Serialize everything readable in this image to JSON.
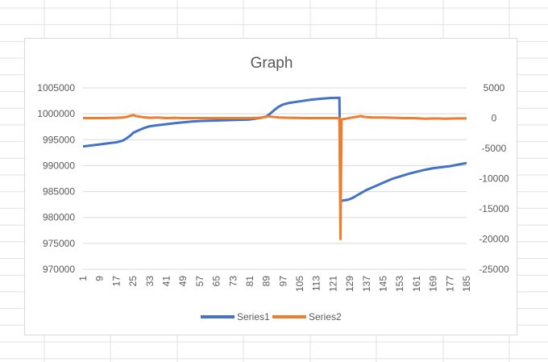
{
  "colors": {
    "sheet_grid": "#e1e1e1",
    "chart_border": "#d9d9d9",
    "gridline": "#d9d9d9",
    "text": "#595959",
    "series1": "#4472c4",
    "series2": "#ed7d31"
  },
  "chart_data": {
    "type": "line",
    "title": "Graph",
    "xlabel": "",
    "ylabel": "",
    "grid": true,
    "legend_position": "bottom",
    "x": {
      "start": 1,
      "end": 185,
      "tick_labels": [
        "1",
        "9",
        "17",
        "25",
        "33",
        "41",
        "49",
        "57",
        "65",
        "73",
        "81",
        "89",
        "97",
        "105",
        "113",
        "121",
        "129",
        "137",
        "145",
        "153",
        "161",
        "169",
        "177",
        "185"
      ]
    },
    "y_primary": {
      "min": 970000,
      "max": 1005000,
      "step": 5000,
      "tick_labels": [
        "1005000",
        "1000000",
        "995000",
        "990000",
        "985000",
        "980000",
        "975000",
        "970000"
      ]
    },
    "y_secondary": {
      "min": -25000,
      "max": 5000,
      "step": 5000,
      "tick_labels": [
        "5000",
        "0",
        "-5000",
        "-10000",
        "-15000",
        "-20000",
        "-25000"
      ]
    },
    "series": [
      {
        "name": "Series1",
        "axis": "primary",
        "points": [
          [
            1,
            993700
          ],
          [
            5,
            993900
          ],
          [
            9,
            994100
          ],
          [
            13,
            994300
          ],
          [
            17,
            994500
          ],
          [
            20,
            994800
          ],
          [
            22,
            995300
          ],
          [
            24,
            995900
          ],
          [
            25,
            996300
          ],
          [
            27,
            996700
          ],
          [
            30,
            997200
          ],
          [
            33,
            997600
          ],
          [
            37,
            997800
          ],
          [
            41,
            998000
          ],
          [
            45,
            998200
          ],
          [
            49,
            998350
          ],
          [
            53,
            998500
          ],
          [
            57,
            998600
          ],
          [
            65,
            998700
          ],
          [
            73,
            998800
          ],
          [
            81,
            998900
          ],
          [
            86,
            999200
          ],
          [
            89,
            999500
          ],
          [
            91,
            1000100
          ],
          [
            93,
            1000800
          ],
          [
            95,
            1001400
          ],
          [
            97,
            1001800
          ],
          [
            100,
            1002100
          ],
          [
            105,
            1002400
          ],
          [
            110,
            1002700
          ],
          [
            115,
            1002900
          ],
          [
            120,
            1003050
          ],
          [
            124,
            1003100
          ],
          [
            124.5,
            983100
          ],
          [
            126,
            983300
          ],
          [
            128,
            983400
          ],
          [
            130,
            983700
          ],
          [
            133,
            984400
          ],
          [
            137,
            985300
          ],
          [
            141,
            986000
          ],
          [
            145,
            986700
          ],
          [
            149,
            987400
          ],
          [
            153,
            987900
          ],
          [
            157,
            988400
          ],
          [
            161,
            988800
          ],
          [
            165,
            989200
          ],
          [
            169,
            989500
          ],
          [
            173,
            989700
          ],
          [
            177,
            989900
          ],
          [
            181,
            990200
          ],
          [
            185,
            990500
          ]
        ]
      },
      {
        "name": "Series2",
        "axis": "secondary",
        "points": [
          [
            1,
            0
          ],
          [
            10,
            0
          ],
          [
            17,
            50
          ],
          [
            20,
            100
          ],
          [
            22,
            200
          ],
          [
            24,
            400
          ],
          [
            25,
            500
          ],
          [
            27,
            300
          ],
          [
            30,
            150
          ],
          [
            33,
            50
          ],
          [
            37,
            100
          ],
          [
            41,
            0
          ],
          [
            45,
            50
          ],
          [
            49,
            0
          ],
          [
            57,
            0
          ],
          [
            65,
            0
          ],
          [
            73,
            0
          ],
          [
            81,
            0
          ],
          [
            85,
            50
          ],
          [
            88,
            150
          ],
          [
            90,
            300
          ],
          [
            92,
            200
          ],
          [
            95,
            100
          ],
          [
            100,
            50
          ],
          [
            110,
            0
          ],
          [
            120,
            0
          ],
          [
            124,
            0
          ],
          [
            124.5,
            -20000
          ],
          [
            125,
            -200
          ],
          [
            127,
            -100
          ],
          [
            130,
            100
          ],
          [
            133,
            250
          ],
          [
            134,
            350
          ],
          [
            136,
            200
          ],
          [
            140,
            100
          ],
          [
            145,
            100
          ],
          [
            150,
            50
          ],
          [
            155,
            0
          ],
          [
            160,
            0
          ],
          [
            165,
            -100
          ],
          [
            170,
            -50
          ],
          [
            175,
            -100
          ],
          [
            180,
            -50
          ],
          [
            185,
            -50
          ]
        ]
      }
    ]
  }
}
